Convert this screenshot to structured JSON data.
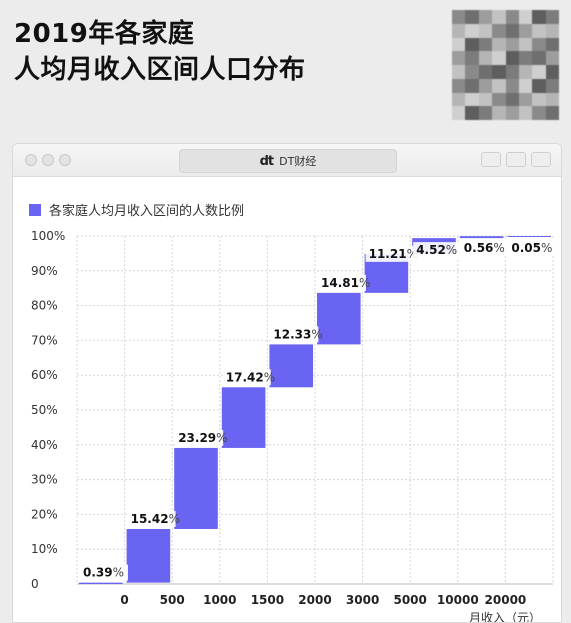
{
  "headline": {
    "line1": "2019年各家庭",
    "line2": "人均月收入区间人口分布"
  },
  "window": {
    "tab_title": "DT财经",
    "tab_logo": "dt"
  },
  "colors": {
    "bar": "#6a64f2",
    "grid": "#d6d6d6",
    "label_bg": "#ffffff"
  },
  "chart_data": {
    "type": "bar",
    "subtype": "waterfall",
    "legend": "各家庭人均月收入区间的人数比例",
    "legend_position": "top-left",
    "categories": [
      "0",
      "500",
      "1000",
      "1500",
      "2000",
      "3000",
      "5000",
      "10000",
      "20000"
    ],
    "segments": [
      {
        "value": 0.39,
        "label": "0.39",
        "start": 0,
        "end": 0.39
      },
      {
        "value": 15.42,
        "label": "15.42",
        "start": 0.39,
        "end": 15.81
      },
      {
        "value": 23.29,
        "label": "23.29",
        "start": 15.81,
        "end": 39.1
      },
      {
        "value": 17.42,
        "label": "17.42",
        "start": 39.1,
        "end": 56.52
      },
      {
        "value": 12.33,
        "label": "12.33",
        "start": 56.52,
        "end": 68.85
      },
      {
        "value": 14.81,
        "label": "14.81",
        "start": 68.85,
        "end": 83.66
      },
      {
        "value": 11.21,
        "label": "11.21",
        "start": 83.66,
        "end": 94.87
      },
      {
        "value": 4.52,
        "label": "4.52",
        "start": 94.87,
        "end": 99.39
      },
      {
        "value": 0.56,
        "label": "0.56",
        "start": 99.39,
        "end": 99.95
      },
      {
        "value": 0.05,
        "label": "0.05",
        "start": 99.95,
        "end": 100
      }
    ],
    "unit_symbol": "%",
    "yticks": [
      "0",
      "10%",
      "20%",
      "30%",
      "40%",
      "50%",
      "60%",
      "70%",
      "80%",
      "90%",
      "100%"
    ],
    "ylim": [
      0,
      100
    ],
    "xlabel": "月收入（元）",
    "grid": true
  }
}
